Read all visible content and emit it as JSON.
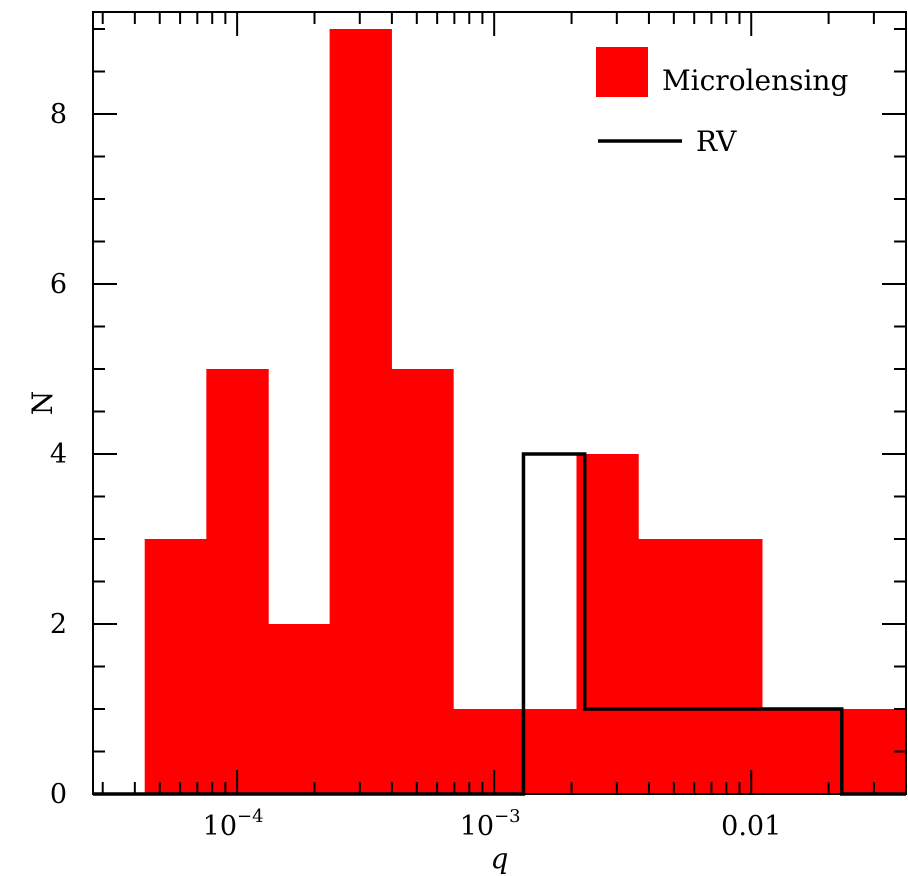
{
  "chart_data": {
    "type": "bar",
    "xscale": "log",
    "xlabel": "q",
    "ylabel": "N",
    "xlim": [
      2.75e-05,
      0.04
    ],
    "ylim": [
      0,
      9.2
    ],
    "x_ticks": [
      {
        "value": 0.0001,
        "label": "10",
        "exp": "-4"
      },
      {
        "value": 0.001,
        "label": "10",
        "exp": "-3"
      },
      {
        "value": 0.01,
        "label": "0.01",
        "exp": ""
      }
    ],
    "y_ticks": [
      0,
      2,
      4,
      6,
      8
    ],
    "bin_edges": [
      4.37e-05,
      7.59e-05,
      0.000132,
      0.000229,
      0.000398,
      0.000692,
      0.0012,
      0.00209,
      0.00363,
      0.00631,
      0.011,
      0.0191,
      0.0331
    ],
    "series": [
      {
        "name": "Microlensing",
        "style": "filled",
        "color": "#ff0000",
        "edges": [
          4.37e-05,
          7.59e-05,
          0.000132,
          0.000229,
          0.000398,
          0.000692,
          0.0012,
          0.00209,
          0.00363,
          0.00631,
          0.011,
          0.0191,
          0.0331,
          0.04
        ],
        "values": [
          3,
          5,
          2,
          9,
          5,
          1,
          1,
          4,
          3,
          3,
          1,
          1,
          1
        ]
      },
      {
        "name": "RV",
        "style": "step",
        "color": "#000000",
        "edges": [
          2.75e-05,
          0.0013,
          0.00225,
          0.0225,
          0.04
        ],
        "values": [
          0,
          4,
          1,
          0
        ]
      }
    ],
    "legend": {
      "position": "top-right",
      "items": [
        {
          "label": "Microlensing",
          "kind": "patch",
          "color": "#ff0000"
        },
        {
          "label": "RV",
          "kind": "line",
          "color": "#000000"
        }
      ]
    },
    "grid": false
  }
}
